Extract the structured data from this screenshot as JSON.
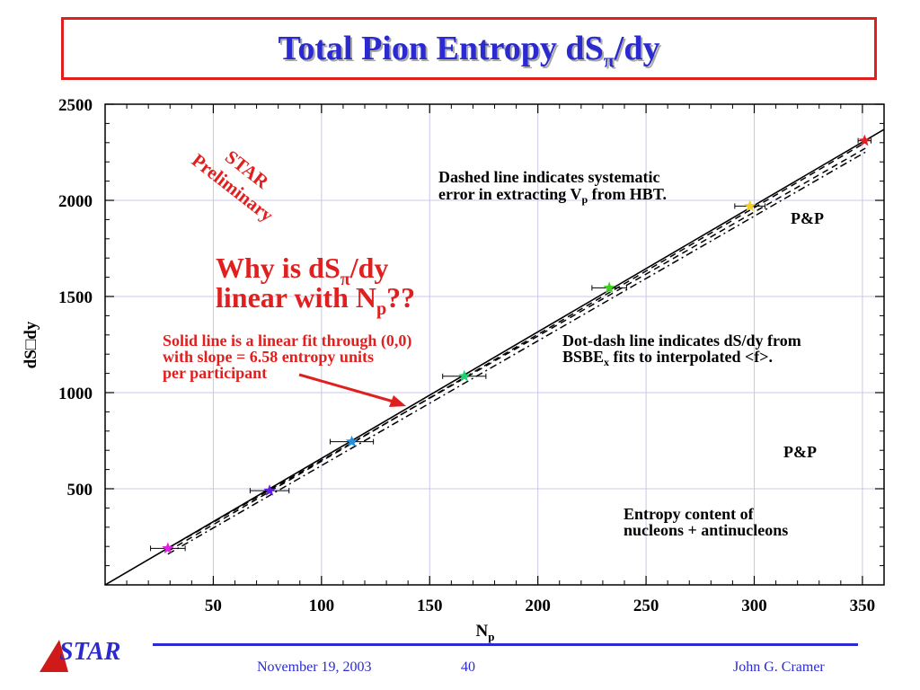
{
  "slide": {
    "title_main": "Total Pion Entropy dS",
    "title_sub": "π",
    "title_end": "/dy",
    "logo_text": "STAR",
    "footer_date": "November 19, 2003",
    "footer_page": "40",
    "footer_author": "John G. Cramer"
  },
  "colors": {
    "title": "#2a2ad0",
    "title_border": "#e0201f",
    "annotation_red": "#e0201f",
    "grid": "#c8c8e8"
  },
  "chart_data": {
    "type": "scatter",
    "title": "",
    "xlabel_main": "N",
    "xlabel_sub": "p",
    "ylabel": "dS□dy",
    "xlim": [
      0,
      360
    ],
    "ylim": [
      0,
      2500
    ],
    "xticks": [
      50,
      100,
      150,
      200,
      250,
      300,
      350
    ],
    "yticks": [
      500,
      1000,
      1500,
      2000,
      2500
    ],
    "grid": true,
    "series": [
      {
        "points": [
          {
            "x": 29,
            "y": 190,
            "xerr": 8,
            "color": "#e020e0"
          },
          {
            "x": 76,
            "y": 490,
            "xerr": 9,
            "color": "#6020e0"
          },
          {
            "x": 114,
            "y": 745,
            "xerr": 10,
            "color": "#2090e0"
          },
          {
            "x": 166,
            "y": 1085,
            "xerr": 10,
            "color": "#20d070"
          },
          {
            "x": 233,
            "y": 1545,
            "xerr": 8,
            "color": "#40d020"
          },
          {
            "x": 298,
            "y": 1970,
            "xerr": 7,
            "color": "#f0d020"
          },
          {
            "x": 351,
            "y": 2310,
            "xerr": 3,
            "color": "#e02020"
          }
        ]
      }
    ],
    "fit_line": {
      "slope": 6.58,
      "x0": 0,
      "x1": 360
    },
    "dashed_lines": [
      {
        "from": [
          29,
          190
        ],
        "to": [
          352,
          2275
        ]
      },
      {
        "from": [
          29,
          175
        ],
        "to": [
          352,
          2305
        ]
      }
    ],
    "dotdash_line": {
      "from": [
        29,
        160
      ],
      "to": [
        352,
        2255
      ]
    },
    "annotations": {
      "star_prelim_1": "STAR",
      "star_prelim_2": "Preliminary",
      "dashed_note_1": "Dashed line indicates systematic",
      "dashed_note_2a": "error in extracting V",
      "dashed_note_2sub": "p",
      "dashed_note_2b": " from HBT.",
      "pp_top": "P&P",
      "question_1a": "Why is dS",
      "question_1sub": "π",
      "question_1b": "/dy",
      "question_2a": "linear with N",
      "question_2sub": "p",
      "question_2b": "??",
      "solid_note_1": "Solid line is a linear fit through (0,0)",
      "solid_note_2": "with slope = 6.58 entropy units",
      "solid_note_3": "per participant",
      "dotdash_note_1": "Dot-dash line indicates dS/dy from",
      "dotdash_note_2a": "BSBE",
      "dotdash_note_2sub": "x",
      "dotdash_note_2b": " fits to interpolated <f>.",
      "pp_bottom": "P&P",
      "entropy_note_1": "Entropy content of",
      "entropy_note_2": "nucleons + antinucleons"
    }
  }
}
